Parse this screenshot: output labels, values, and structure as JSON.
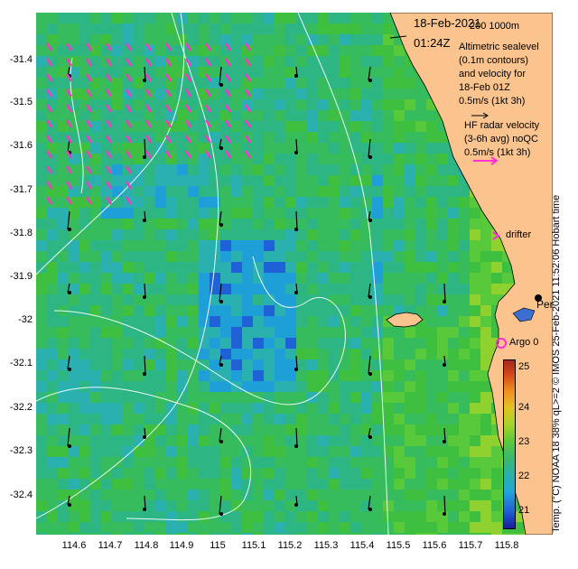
{
  "header": {
    "date": "18-Feb-2021",
    "time": "01:24Z",
    "depth_contours": "200 1000m"
  },
  "legend": {
    "altimetry_lines": [
      "Altimetric sealevel",
      "(0.1m contours)",
      "and velocity for",
      "18-Feb 01Z",
      "0.5m/s (1kt 3h)"
    ],
    "hf_radar_lines": [
      "HF radar velocity",
      "(3-6h avg) noQC",
      "0.5m/s (1kt 3h)"
    ],
    "drifter_label": "drifter",
    "argo_label": "Argo 0",
    "city_label": "Perth"
  },
  "axes": {
    "y_ticks": [
      "-31.4",
      "-31.5",
      "-31.6",
      "-31.7",
      "-31.8",
      "-31.9",
      "-32",
      "-32.1",
      "-32.2",
      "-32.3",
      "-32.4"
    ],
    "x_ticks": [
      "114.6",
      "114.7",
      "114.8",
      "114.9",
      "115",
      "115.1",
      "115.2",
      "115.3",
      "115.4",
      "115.5",
      "115.6",
      "115.7",
      "115.8"
    ]
  },
  "colorbar": {
    "label": "Temp. (°C) NOAA 18 38% qL>=2",
    "ticks": [
      "25",
      "24",
      "23",
      "22",
      "21"
    ],
    "range": [
      20.5,
      25.3
    ]
  },
  "footer": {
    "credit": "© IMOS 25-Feb-2021 11:52:06 Hobart time"
  },
  "colors": {
    "land": "#fbc48f",
    "contour": "#e6faf8",
    "hf_arrow": "#ff33cc",
    "argo": "#ff2bdb"
  }
}
